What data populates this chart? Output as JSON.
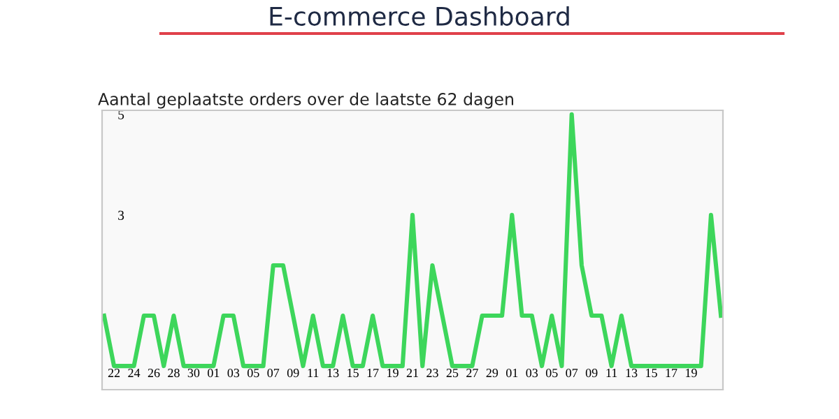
{
  "chart_data": {
    "type": "line",
    "title": "E-commerce Dashboard",
    "subtitle": "Aantal geplaatste orders over de laatste 62 dagen",
    "categories": [
      null,
      "22",
      null,
      "24",
      null,
      "26",
      null,
      "28",
      null,
      "30",
      null,
      "01",
      null,
      "03",
      null,
      "05",
      null,
      "07",
      null,
      "09",
      null,
      "11",
      null,
      "13",
      null,
      "15",
      null,
      "17",
      null,
      "19",
      null,
      "21",
      null,
      "23",
      null,
      "25",
      null,
      "27",
      null,
      "29",
      null,
      "01",
      null,
      "03",
      null,
      "05",
      null,
      "07",
      null,
      "09",
      null,
      "11",
      null,
      "13",
      null,
      "15",
      null,
      "17",
      null,
      "19",
      null,
      null,
      null
    ],
    "series": [
      {
        "color": "#3dd65b",
        "values": [
          1,
          0,
          0,
          0,
          1,
          1,
          0,
          1,
          0,
          0,
          0,
          0,
          1,
          1,
          0,
          0,
          0,
          2,
          2,
          1,
          0,
          1,
          0,
          0,
          1,
          0,
          0,
          1,
          0,
          0,
          0,
          3,
          0,
          2,
          1,
          0,
          0,
          0,
          1,
          1,
          1,
          3,
          1,
          1,
          0,
          1,
          0,
          5,
          2,
          1,
          1,
          0,
          1,
          0,
          0,
          0,
          0,
          0,
          0,
          0,
          0,
          3,
          1
        ]
      }
    ],
    "ylim": [
      -0.47,
      5.08
    ],
    "yticks": [
      3,
      5
    ]
  }
}
